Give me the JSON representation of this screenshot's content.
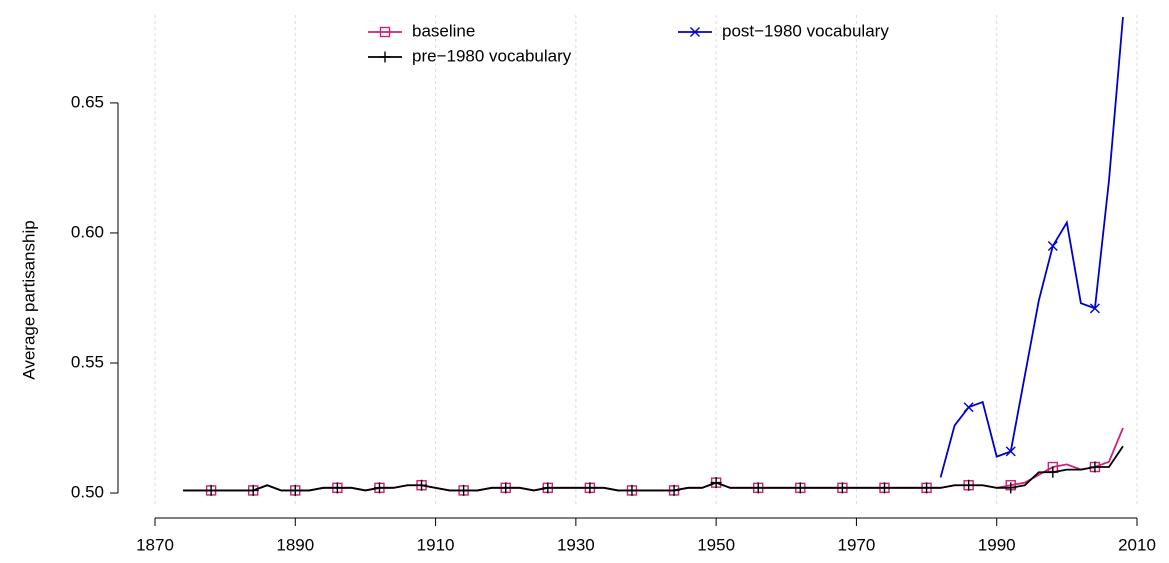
{
  "chart_data": {
    "type": "line",
    "y_label": "Average partisanship",
    "x": [
      1874,
      1876,
      1878,
      1880,
      1882,
      1884,
      1886,
      1888,
      1890,
      1892,
      1894,
      1896,
      1898,
      1900,
      1902,
      1904,
      1906,
      1908,
      1910,
      1912,
      1914,
      1916,
      1918,
      1920,
      1922,
      1924,
      1926,
      1928,
      1930,
      1932,
      1934,
      1936,
      1938,
      1940,
      1942,
      1944,
      1946,
      1948,
      1950,
      1952,
      1954,
      1956,
      1958,
      1960,
      1962,
      1964,
      1966,
      1968,
      1970,
      1972,
      1974,
      1976,
      1978,
      1980,
      1982,
      1984,
      1986,
      1988,
      1990,
      1992,
      1994,
      1996,
      1998,
      2000,
      2002,
      2004,
      2006,
      2008
    ],
    "series": [
      {
        "name": "baseline",
        "color": "#cc2277",
        "marker": "square",
        "values": [
          0.501,
          0.501,
          0.501,
          0.501,
          0.501,
          0.501,
          0.503,
          0.501,
          0.501,
          0.501,
          0.502,
          0.502,
          0.502,
          0.501,
          0.502,
          0.502,
          0.503,
          0.503,
          0.502,
          0.501,
          0.501,
          0.501,
          0.502,
          0.502,
          0.502,
          0.501,
          0.502,
          0.502,
          0.502,
          0.502,
          0.502,
          0.501,
          0.501,
          0.501,
          0.501,
          0.501,
          0.502,
          0.502,
          0.504,
          0.502,
          0.502,
          0.502,
          0.502,
          0.502,
          0.502,
          0.502,
          0.502,
          0.502,
          0.502,
          0.502,
          0.502,
          0.502,
          0.502,
          0.502,
          0.502,
          0.503,
          0.503,
          0.503,
          0.502,
          0.503,
          0.504,
          0.507,
          0.51,
          0.511,
          0.509,
          0.51,
          0.512,
          0.525
        ]
      },
      {
        "name": "pre−1980 vocabulary",
        "color": "#000000",
        "marker": "plus",
        "values": [
          0.501,
          0.501,
          0.501,
          0.501,
          0.501,
          0.501,
          0.503,
          0.501,
          0.501,
          0.501,
          0.502,
          0.502,
          0.502,
          0.501,
          0.502,
          0.502,
          0.503,
          0.503,
          0.502,
          0.501,
          0.501,
          0.501,
          0.502,
          0.502,
          0.502,
          0.501,
          0.502,
          0.502,
          0.502,
          0.502,
          0.502,
          0.501,
          0.501,
          0.501,
          0.501,
          0.501,
          0.502,
          0.502,
          0.504,
          0.502,
          0.502,
          0.502,
          0.502,
          0.502,
          0.502,
          0.502,
          0.502,
          0.502,
          0.502,
          0.502,
          0.502,
          0.502,
          0.502,
          0.502,
          0.502,
          0.503,
          0.503,
          0.503,
          0.502,
          0.502,
          0.503,
          0.508,
          0.508,
          0.509,
          0.509,
          0.51,
          0.51,
          0.518
        ]
      },
      {
        "name": "post−1980 vocabulary",
        "color": "#0000cc",
        "marker": "cross",
        "values": [
          null,
          null,
          null,
          null,
          null,
          null,
          null,
          null,
          null,
          null,
          null,
          null,
          null,
          null,
          null,
          null,
          null,
          null,
          null,
          null,
          null,
          null,
          null,
          null,
          null,
          null,
          null,
          null,
          null,
          null,
          null,
          null,
          null,
          null,
          null,
          null,
          null,
          null,
          null,
          null,
          null,
          null,
          null,
          null,
          null,
          null,
          null,
          null,
          null,
          null,
          null,
          null,
          null,
          null,
          0.506,
          0.526,
          0.533,
          0.535,
          0.514,
          0.516,
          0.545,
          0.574,
          0.595,
          0.604,
          0.573,
          0.571,
          0.62,
          0.683
        ]
      }
    ],
    "xlim": [
      1870,
      2010
    ],
    "xticks": [
      1870,
      1890,
      1910,
      1930,
      1950,
      1970,
      1990,
      2010
    ],
    "ylim": [
      0.4954,
      0.6838
    ],
    "yticks": [
      {
        "value": 0.5,
        "label": "0.50"
      },
      {
        "value": 0.55,
        "label": "0.55"
      },
      {
        "value": 0.6,
        "label": "0.60"
      },
      {
        "value": 0.65,
        "label": "0.65"
      }
    ],
    "grid": true
  }
}
